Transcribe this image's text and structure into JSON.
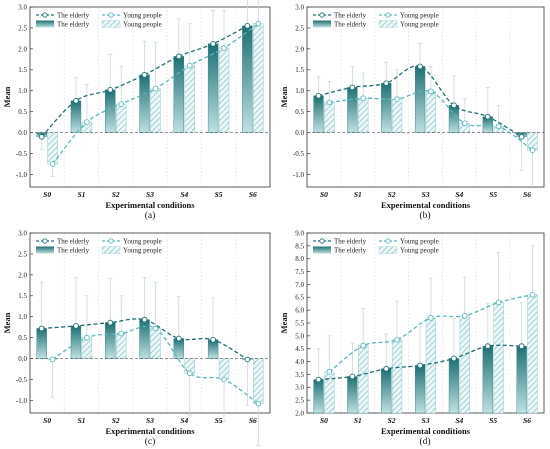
{
  "colors": {
    "elderly": "#1f6f73",
    "elderly_light": "#8fc5c8",
    "young": "#5ab7bd",
    "young_hatch": "#9ccfd2",
    "error_bar": "#c8dadb",
    "grid": "#cfe6e8"
  },
  "chart_data": [
    {
      "type": "bar",
      "panel_label": "(a)",
      "categories": [
        "S0",
        "S1",
        "S2",
        "S3",
        "S4",
        "S5",
        "S6"
      ],
      "xlabel": "Experimental conditions",
      "ylabel": "Mean",
      "ylim": [
        -1.3,
        3.0
      ],
      "yticks": [
        "-1.0",
        "-0.5",
        "0.0",
        "0.5",
        "1.0",
        "1.5",
        "2.0",
        "2.5",
        "3.0"
      ],
      "legend_labels": [
        "The elderly",
        "Young people",
        "The elderly",
        "Young people"
      ],
      "series": [
        {
          "name": "The elderly",
          "values": [
            -0.1,
            0.76,
            1.02,
            1.38,
            1.82,
            2.12,
            2.55
          ],
          "errors": [
            0.3,
            0.55,
            0.85,
            0.8,
            0.9,
            0.8,
            0.7
          ]
        },
        {
          "name": "Young people",
          "values": [
            -0.75,
            0.25,
            0.68,
            1.05,
            1.6,
            2.02,
            2.6
          ],
          "errors": [
            0.3,
            0.9,
            0.9,
            1.1,
            1.0,
            0.9,
            0.7
          ]
        }
      ]
    },
    {
      "type": "bar",
      "panel_label": "(b)",
      "categories": [
        "S0",
        "S1",
        "S2",
        "S3",
        "S4",
        "S5",
        "S6"
      ],
      "xlabel": "Experimental conditions",
      "ylabel": "Mean",
      "ylim": [
        -1.3,
        3.0
      ],
      "yticks": [
        "-1.0",
        "-0.5",
        "0.0",
        "0.5",
        "1.0",
        "1.5",
        "2.0",
        "2.5",
        "3.0"
      ],
      "legend_labels": [
        "The elderly",
        "Young people",
        "The elderly",
        "Young people"
      ],
      "series": [
        {
          "name": "The elderly",
          "values": [
            0.88,
            1.08,
            1.18,
            1.58,
            0.65,
            0.38,
            -0.1
          ],
          "errors": [
            0.45,
            0.5,
            0.5,
            0.55,
            0.7,
            0.7,
            0.8
          ]
        },
        {
          "name": "Young people",
          "values": [
            0.72,
            0.82,
            0.8,
            0.98,
            0.22,
            0.15,
            -0.42
          ],
          "errors": [
            0.5,
            0.6,
            0.7,
            0.6,
            0.6,
            0.5,
            0.9
          ]
        }
      ]
    },
    {
      "type": "bar",
      "panel_label": "(c)",
      "categories": [
        "S0",
        "S1",
        "S2",
        "S3",
        "S4",
        "S5",
        "S6"
      ],
      "xlabel": "Experimental conditions",
      "ylabel": "Mean",
      "ylim": [
        -1.3,
        3.0
      ],
      "yticks": [
        "-1.0",
        "-0.5",
        "0.0",
        "0.5",
        "1.0",
        "1.5",
        "2.0",
        "2.5",
        "3.0"
      ],
      "legend_labels": [
        "The elderly",
        "Young people",
        "The elderly",
        "Young people"
      ],
      "series": [
        {
          "name": "The elderly",
          "values": [
            0.72,
            0.78,
            0.86,
            0.93,
            0.48,
            0.45,
            -0.02
          ],
          "errors": [
            1.1,
            1.15,
            1.05,
            1.0,
            1.0,
            1.0,
            1.1
          ]
        },
        {
          "name": "Young people",
          "values": [
            -0.02,
            0.5,
            0.6,
            0.72,
            -0.35,
            -0.5,
            -1.08
          ],
          "errors": [
            0.9,
            1.0,
            0.9,
            1.1,
            1.0,
            1.0,
            1.0
          ]
        }
      ]
    },
    {
      "type": "bar",
      "panel_label": "(d)",
      "categories": [
        "S0",
        "S1",
        "S2",
        "S3",
        "S4",
        "S5",
        "S6"
      ],
      "xlabel": "Experimental conditions",
      "ylabel": "Mean",
      "ylim": [
        2.0,
        9.0
      ],
      "yticks": [
        "2.0",
        "2.5",
        "3.0",
        "3.5",
        "4.0",
        "4.5",
        "5.0",
        "5.5",
        "6.0",
        "6.5",
        "7.0",
        "7.5",
        "8.0",
        "8.5",
        "9.0"
      ],
      "legend_labels": [
        "The elderly",
        "Young people",
        "The elderly",
        "Young people"
      ],
      "series": [
        {
          "name": "The elderly",
          "values": [
            3.3,
            3.42,
            3.72,
            3.85,
            4.12,
            4.6,
            4.6
          ],
          "errors": [
            1.2,
            1.3,
            1.35,
            1.5,
            1.55,
            1.65,
            1.7
          ]
        },
        {
          "name": "Young people",
          "values": [
            3.6,
            4.62,
            4.85,
            5.7,
            5.78,
            6.3,
            6.6
          ],
          "errors": [
            1.4,
            1.45,
            1.5,
            1.55,
            1.5,
            1.95,
            1.9
          ]
        }
      ]
    }
  ]
}
